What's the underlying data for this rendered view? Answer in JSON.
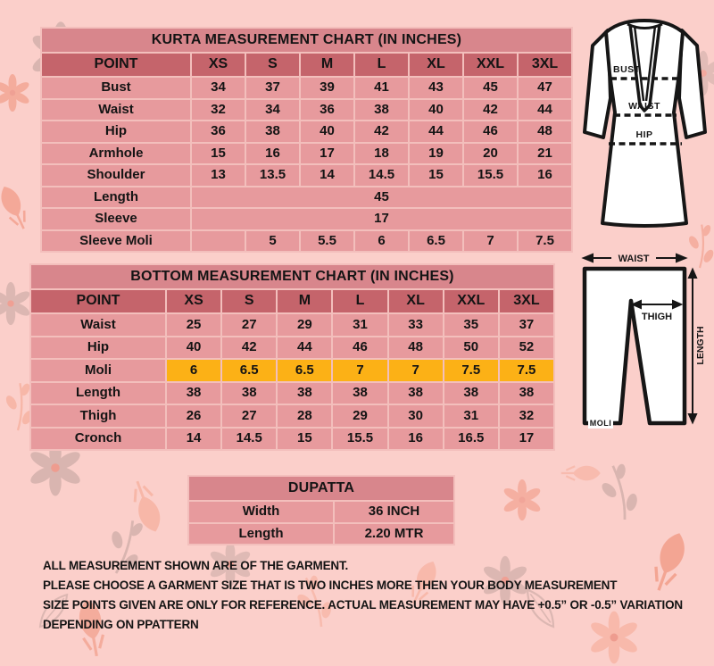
{
  "kurta_chart": {
    "title": "KURTA MEASUREMENT CHART (IN INCHES)",
    "columns": [
      "POINT",
      "XS",
      "S",
      "M",
      "L",
      "XL",
      "XXL",
      "3XL"
    ],
    "rows": [
      {
        "label": "Bust",
        "values": [
          "34",
          "37",
          "39",
          "41",
          "43",
          "45",
          "47"
        ]
      },
      {
        "label": "Waist",
        "values": [
          "32",
          "34",
          "36",
          "38",
          "40",
          "42",
          "44"
        ]
      },
      {
        "label": "Hip",
        "values": [
          "36",
          "38",
          "40",
          "42",
          "44",
          "46",
          "48"
        ]
      },
      {
        "label": "Armhole",
        "values": [
          "15",
          "16",
          "17",
          "18",
          "19",
          "20",
          "21"
        ]
      },
      {
        "label": "Shoulder",
        "values": [
          "13",
          "13.5",
          "14",
          "14.5",
          "15",
          "15.5",
          "16"
        ]
      },
      {
        "label": "Length",
        "span": "45"
      },
      {
        "label": "Sleeve",
        "span": "17"
      },
      {
        "label": "Sleeve Moli",
        "values": [
          "",
          "5",
          "5.5",
          "6",
          "6.5",
          "7",
          "7.5"
        ]
      }
    ]
  },
  "bottom_chart": {
    "title": "BOTTOM MEASUREMENT CHART (IN INCHES)",
    "columns": [
      "POINT",
      "XS",
      "S",
      "M",
      "L",
      "XL",
      "XXL",
      "3XL"
    ],
    "rows": [
      {
        "label": "Waist",
        "values": [
          "25",
          "27",
          "29",
          "31",
          "33",
          "35",
          "37"
        ]
      },
      {
        "label": "Hip",
        "values": [
          "40",
          "42",
          "44",
          "46",
          "48",
          "50",
          "52"
        ]
      },
      {
        "label": "Moli",
        "values": [
          "6",
          "6.5",
          "6.5",
          "7",
          "7",
          "7.5",
          "7.5"
        ],
        "highlight": true
      },
      {
        "label": "Length",
        "values": [
          "38",
          "38",
          "38",
          "38",
          "38",
          "38",
          "38"
        ]
      },
      {
        "label": "Thigh",
        "values": [
          "26",
          "27",
          "28",
          "29",
          "30",
          "31",
          "32"
        ]
      },
      {
        "label": "Cronch",
        "values": [
          "14",
          "14.5",
          "15",
          "15.5",
          "16",
          "16.5",
          "17"
        ]
      }
    ]
  },
  "dupatta_chart": {
    "title": "DUPATTA",
    "rows": [
      {
        "label": "Width",
        "value": "36 INCH"
      },
      {
        "label": "Length",
        "value": "2.20 MTR"
      }
    ]
  },
  "notes": {
    "lines": [
      "ALL MEASUREMENT SHOWN ARE OF THE  GARMENT.",
      "PLEASE CHOOSE A GARMENT SIZE THAT IS TWO INCHES MORE THEN YOUR BODY MEASUREMENT",
      "SIZE POINTS GIVEN ARE ONLY FOR REFERENCE. ACTUAL MEASUREMENT MAY HAVE  +0.5” OR -0.5” VARIATION",
      "DEPENDING ON PPATTERN"
    ]
  },
  "kurta_figure": {
    "bust": "BUST",
    "waist": "WAIST",
    "hip": "HIP"
  },
  "pants_figure": {
    "waist": "WAIST",
    "thigh": "THIGH",
    "length": "LENGTH",
    "moli": "MOLI"
  },
  "colors": {
    "pageBg": "#fbcfca",
    "bandTitle": "#d8868c",
    "bandHeader": "#c5646b",
    "cell": "#e79a9d",
    "gridLine": "#f3bfbc",
    "highlight": "#fcb116",
    "ink": "#141414",
    "figStroke": "#161616",
    "figFill": "#ffffff",
    "patternCoral": "#ef8a70",
    "patternSalmon": "#f6a893",
    "patternGray": "#bfa19c"
  }
}
